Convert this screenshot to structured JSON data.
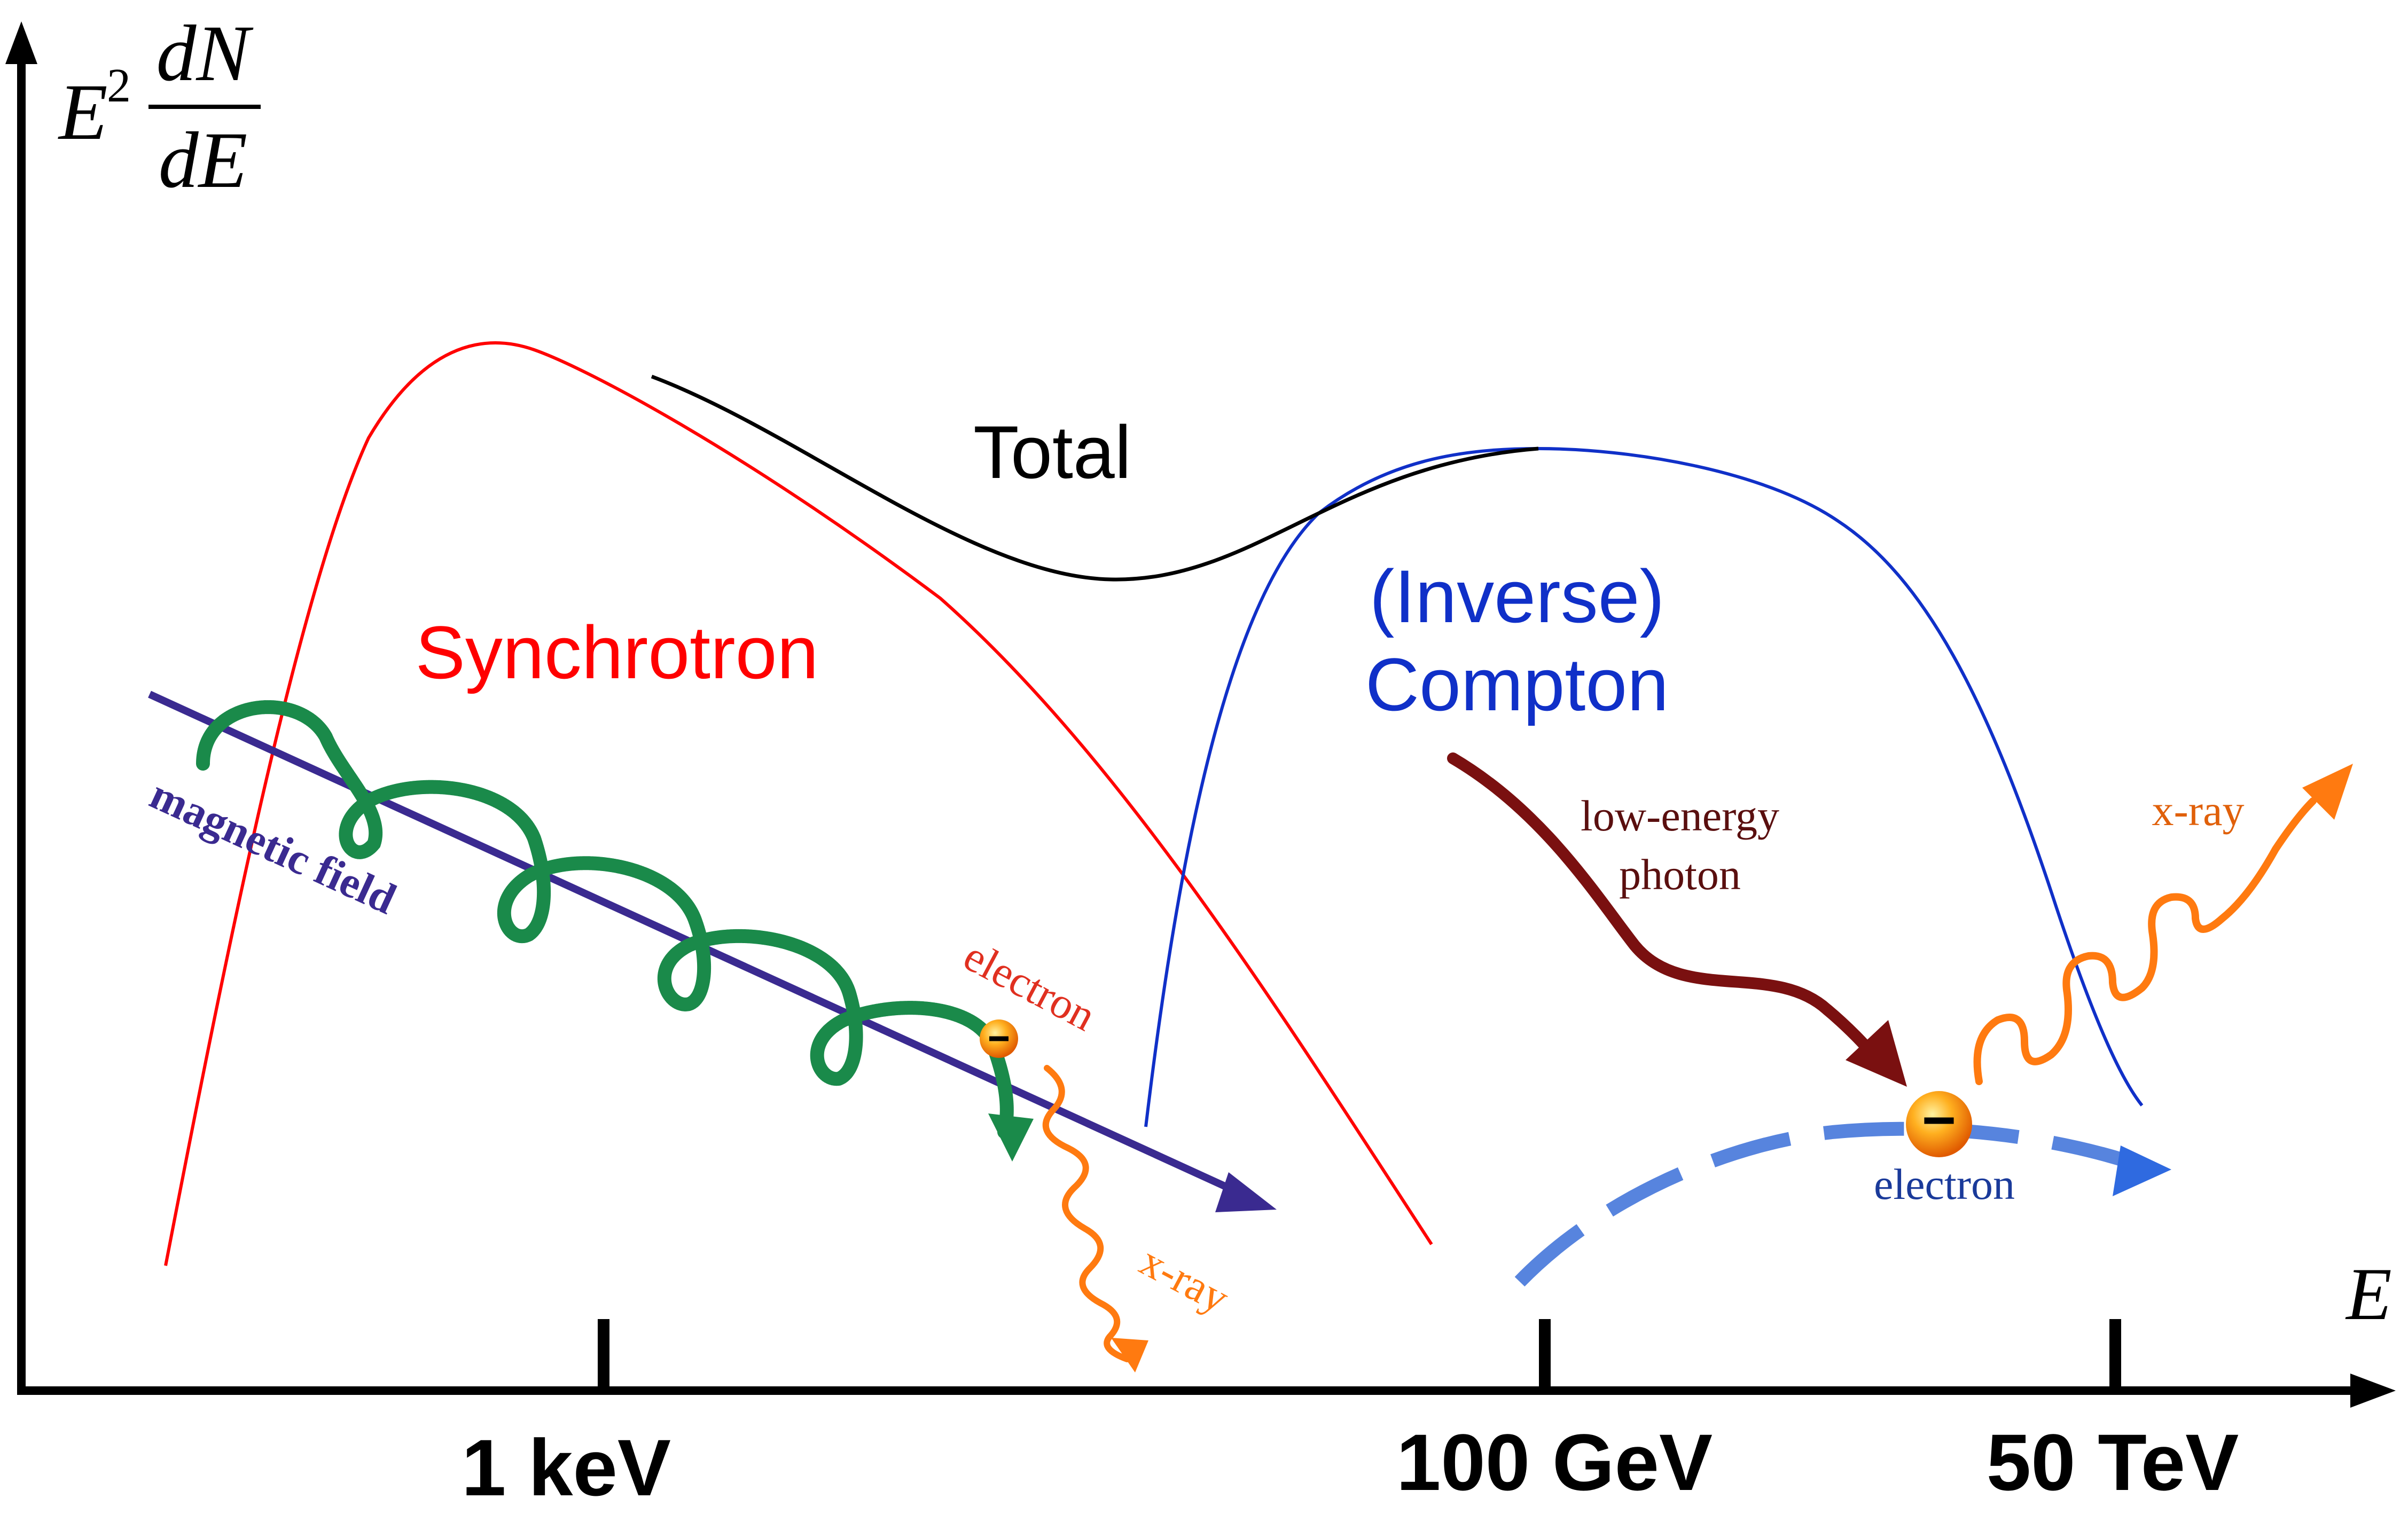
{
  "axes": {
    "y_label_E": "E",
    "y_label_sup": "2",
    "y_label_num": "dN",
    "y_label_den": "dE",
    "x_label": "E",
    "ticks": [
      "1 keV",
      "100 GeV",
      "50 TeV"
    ]
  },
  "curves": {
    "synchrotron": "Synchrotron",
    "compton_line1": "(Inverse)",
    "compton_line2": "Compton",
    "total": "Total"
  },
  "synchrotron_inset": {
    "field": "magnetic field",
    "electron": "electron",
    "xray": "x-ray"
  },
  "compton_inset": {
    "photon_line1": "low-energy",
    "photon_line2": "photon",
    "electron": "electron",
    "xray": "x-ray",
    "charge_sign": "−"
  },
  "colors": {
    "synchrotron": "#ff0000",
    "compton": "#1030c8",
    "total": "#000000",
    "spiral": "#1a8a4a",
    "field": "#3a2a90",
    "xray": "#ff7a10",
    "photon": "#7a1010",
    "electron_path": "#3a6fd8"
  }
}
